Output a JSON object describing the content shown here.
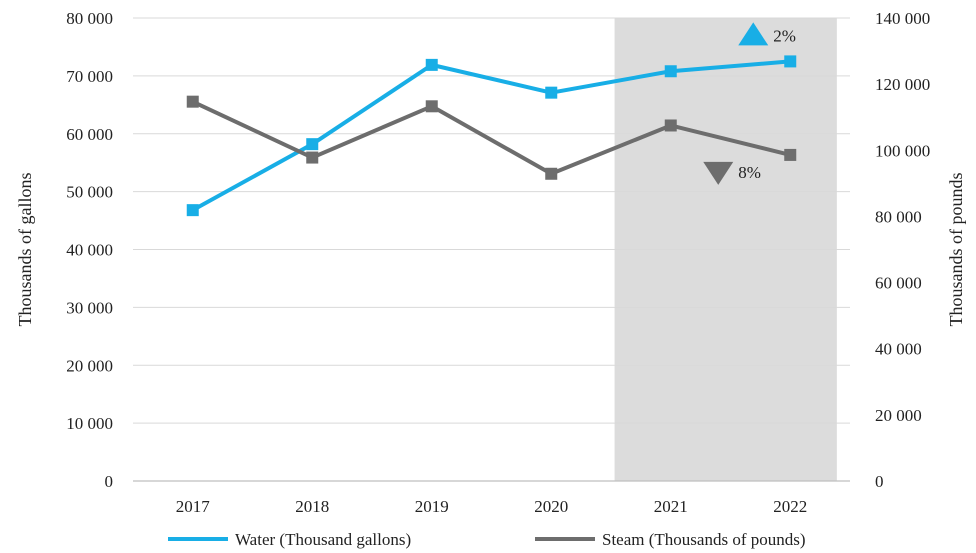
{
  "chart_data": {
    "type": "line",
    "categories": [
      "2017",
      "2018",
      "2019",
      "2020",
      "2021",
      "2022"
    ],
    "series": [
      {
        "name": "Water (Thousand gallons)",
        "axis": "left",
        "color": "#18AEE6",
        "marker": "square",
        "values": [
          46800,
          58200,
          71900,
          67100,
          70800,
          72500
        ]
      },
      {
        "name": "Steam (Thousands of pounds)",
        "axis": "right",
        "color": "#6D6D6D",
        "marker": "square",
        "values": [
          114700,
          97800,
          113300,
          92900,
          107500,
          98600
        ]
      }
    ],
    "y_left": {
      "label": "Thousands of gallons",
      "range": [
        0,
        80000
      ],
      "ticks": [
        0,
        10000,
        20000,
        30000,
        40000,
        50000,
        60000,
        70000,
        80000
      ],
      "tick_labels": [
        "0",
        "10 000",
        "20 000",
        "30 000",
        "40 000",
        "50 000",
        "60 000",
        "70 000",
        "80 000"
      ]
    },
    "y_right": {
      "label": "Thousands of pounds",
      "range": [
        0,
        140000
      ],
      "ticks": [
        0,
        20000,
        40000,
        60000,
        80000,
        100000,
        120000,
        140000
      ],
      "tick_labels": [
        "0",
        "20 000",
        "40 000",
        "60 000",
        "80 000",
        "100 000",
        "120 000",
        "140 000"
      ]
    },
    "highlight": {
      "from": "2021",
      "to": "2022",
      "color": "#DCDCDC"
    },
    "annotations": [
      {
        "text": "2%",
        "direction": "up",
        "color": "#18AEE6",
        "near": "2022",
        "series": 0
      },
      {
        "text": "8%",
        "direction": "down",
        "color": "#6D6D6D",
        "near": "2022",
        "series": 1
      }
    ],
    "grid": true,
    "legend_position": "bottom"
  }
}
